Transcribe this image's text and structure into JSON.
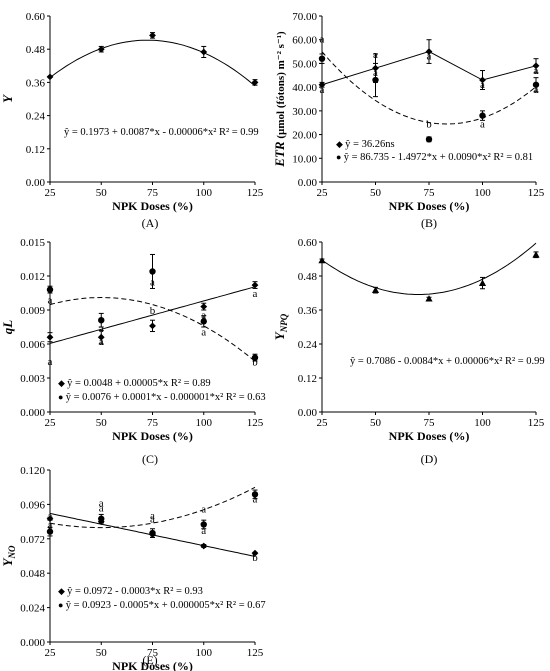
{
  "chart_data": [
    {
      "panel": "(A)",
      "type": "scatter",
      "ylabel": "Y",
      "xlabel": "NPK Doses (%)",
      "x": [
        25,
        50,
        75,
        100,
        125
      ],
      "xlim": [
        25,
        125
      ],
      "ylim": [
        0,
        0.6
      ],
      "yticks": [
        "0.00",
        "0.12",
        "0.24",
        "0.36",
        "0.48",
        "0.60"
      ],
      "series": [
        {
          "marker": "diamond",
          "values": [
            0.38,
            0.48,
            0.53,
            0.47,
            0.36
          ],
          "errors": [
            0.0,
            0.01,
            0.01,
            0.02,
            0.01
          ],
          "fit": {
            "a": 0.1973,
            "b": 0.0087,
            "c": -6e-05,
            "style": "solid"
          },
          "equation": "ŷ = 0.1973 + 0.0087*x - 0.00006*x² R² = 0.99"
        }
      ]
    },
    {
      "panel": "(B)",
      "type": "scatter",
      "ylabel": "ETR (µmol (fótons) m⁻² s⁻¹)",
      "xlabel": "NPK Doses (%)",
      "x": [
        25,
        50,
        75,
        100,
        125
      ],
      "xlim": [
        25,
        125
      ],
      "ylim": [
        0,
        70
      ],
      "yticks": [
        "0.00",
        "10.00",
        "20.00",
        "30.00",
        "40.00",
        "50.00",
        "60.00",
        "70.00"
      ],
      "series": [
        {
          "marker": "diamond",
          "values": [
            41,
            48,
            55,
            43,
            49
          ],
          "errors": [
            1,
            6,
            5,
            4,
            3
          ],
          "connect": true,
          "equation": "ŷ = 36.26ns",
          "letters": [
            "a",
            "a",
            "a",
            "a",
            "a"
          ]
        },
        {
          "marker": "circle",
          "values": [
            52,
            43,
            18,
            28,
            41
          ],
          "errors": [
            2,
            7,
            1,
            2,
            3
          ],
          "fit": {
            "a": 86.735,
            "b": -1.4972,
            "c": 0.009,
            "style": "dashed"
          },
          "equation": "ŷ = 86.735 - 1.4972*x + 0.0090*x² R² = 0.81",
          "letters": [
            "a",
            "a",
            "b",
            "a",
            "a"
          ]
        }
      ]
    },
    {
      "panel": "(C)",
      "type": "scatter",
      "ylabel": "qL",
      "xlabel": "NPK Doses (%)",
      "x": [
        25,
        50,
        75,
        100,
        125
      ],
      "xlim": [
        25,
        125
      ],
      "ylim": [
        0,
        0.015
      ],
      "yticks": [
        "0.000",
        "0.003",
        "0.006",
        "0.009",
        "0.012",
        "0.015"
      ],
      "series": [
        {
          "marker": "diamond",
          "values": [
            0.0066,
            0.0066,
            0.0076,
            0.0093,
            0.0112
          ],
          "errors": [
            0.0004,
            0.0006,
            0.0005,
            0.0003,
            0.0003
          ],
          "fit": {
            "a": 0.0048,
            "b": 5e-05,
            "c": 0,
            "style": "solid"
          },
          "equation": "ŷ = 0.0048 + 0.00005*x R² = 0.89",
          "letters": [
            "a",
            "a",
            "b",
            "a",
            "a"
          ]
        },
        {
          "marker": "circle",
          "values": [
            0.0108,
            0.0081,
            0.0124,
            0.008,
            0.0048
          ],
          "errors": [
            0.0003,
            0.0006,
            0.0015,
            0.0005,
            0.0003
          ],
          "fit": {
            "a": 0.0076,
            "b": 0.0001,
            "c": -1e-06,
            "style": "dashed"
          },
          "equation": "ŷ = 0.0076 + 0.0001*x - 0.000001*x² R² = 0.63",
          "letters": [
            "a",
            "a",
            "a",
            "a",
            "b"
          ]
        }
      ]
    },
    {
      "panel": "(D)",
      "type": "scatter",
      "ylabel": "YNPQ",
      "xlabel": "NPK Doses (%)",
      "x": [
        25,
        50,
        75,
        100,
        125
      ],
      "xlim": [
        25,
        125
      ],
      "ylim": [
        0,
        0.6
      ],
      "yticks": [
        "0.00",
        "0.12",
        "0.24",
        "0.36",
        "0.48",
        "0.60"
      ],
      "series": [
        {
          "marker": "triangle",
          "values": [
            0.535,
            0.43,
            0.4,
            0.455,
            0.555
          ],
          "errors": [
            0.005,
            0.01,
            0.005,
            0.02,
            0.01
          ],
          "fit": {
            "a": 0.7086,
            "b": -0.0084,
            "c": 6e-05,
            "style": "solid"
          },
          "equation": "ŷ = 0.7086 - 0.0084*x + 0.00006*x² R² = 0.99"
        }
      ]
    },
    {
      "panel": "(E)",
      "type": "scatter",
      "ylabel": "YNO",
      "xlabel": "NPK Doses (%)",
      "x": [
        25,
        50,
        75,
        100,
        125
      ],
      "xlim": [
        25,
        125
      ],
      "ylim": [
        0,
        0.12
      ],
      "yticks": [
        "0.000",
        "0.024",
        "0.048",
        "0.072",
        "0.096",
        "0.120"
      ],
      "series": [
        {
          "marker": "diamond",
          "values": [
            0.086,
            0.084,
            0.075,
            0.067,
            0.062
          ],
          "errors": [
            0.001,
            0.001,
            0.002,
            0.001,
            0.0005
          ],
          "fit": {
            "a": 0.0972,
            "b": -0.0003,
            "c": 0,
            "style": "solid"
          },
          "equation": "ŷ = 0.0972 - 0.0003*x R² = 0.93",
          "letters": [
            "a",
            "a",
            "a",
            "a",
            "b"
          ]
        },
        {
          "marker": "circle",
          "values": [
            0.077,
            0.086,
            0.076,
            0.082,
            0.103
          ],
          "errors": [
            0.003,
            0.003,
            0.003,
            0.003,
            0.003
          ],
          "fit": {
            "a": 0.0923,
            "b": -0.0005,
            "c": 5e-06,
            "style": "dashed"
          },
          "equation": "ŷ = 0.0923 - 0.0005*x + 0.000005*x² R² = 0.67",
          "letters": [
            "a",
            "a",
            "a",
            "a",
            "a"
          ]
        }
      ]
    }
  ]
}
